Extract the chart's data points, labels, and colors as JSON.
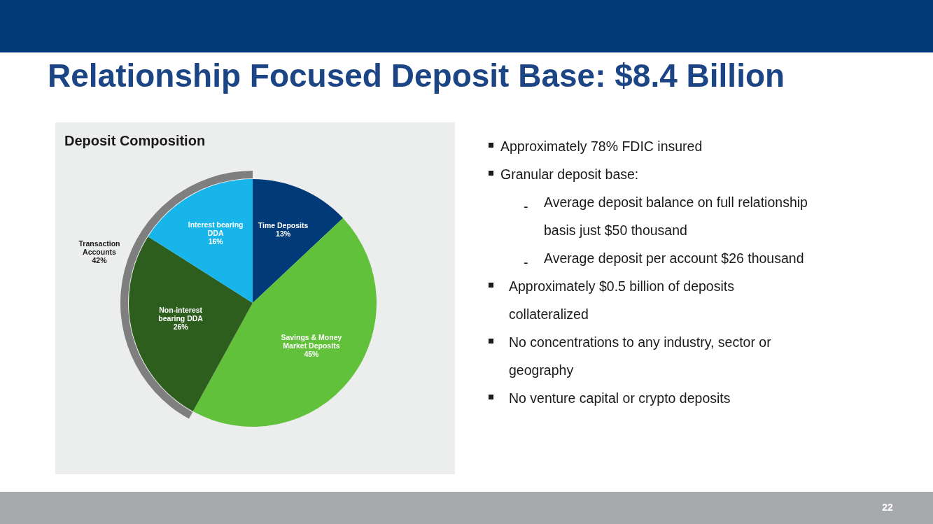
{
  "chart_data": {
    "type": "pie",
    "title": "Relationship Focused Deposit Base: $8.4 Billion",
    "subtitle": "Deposit Composition",
    "categories": [
      "Time Deposits",
      "Savings & Money Market Deposits",
      "Non-interest bearing DDA",
      "Interest bearing DDA"
    ],
    "values": [
      13,
      45,
      26,
      16
    ],
    "value_labels": [
      "13%",
      "45%",
      "26%",
      "16%"
    ],
    "colors": [
      "#003a78",
      "#62c13a",
      "#2e5e1e",
      "#17b5e9"
    ],
    "annotations": [
      "Transaction Accounts 42%",
      "Approximately 78% FDIC insured",
      "Granular deposit base:",
      "- Average deposit balance on full relationship basis just $50 thousand",
      "- Average deposit per account $26 thousand",
      "Approximately $0.5 billion of deposits collateralized",
      "No concentrations to any industry, sector or geography",
      "No venture capital or crypto deposits",
      "22"
    ]
  }
}
